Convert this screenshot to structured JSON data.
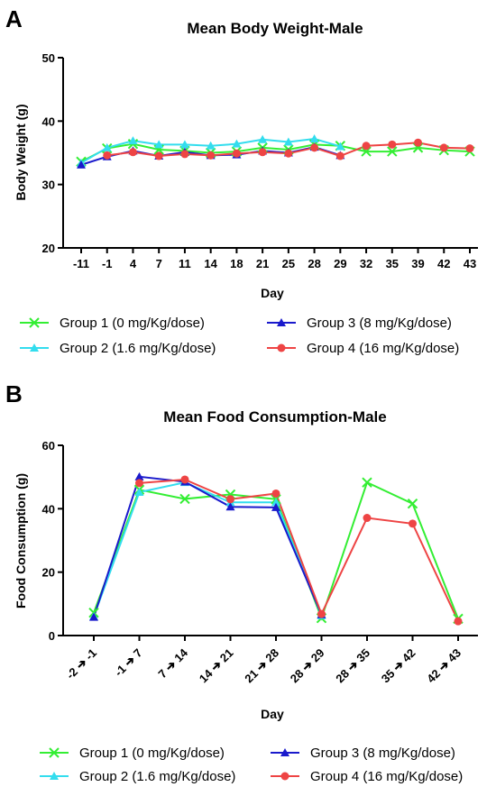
{
  "panels": {
    "a": {
      "letter": "A"
    },
    "b": {
      "letter": "B"
    }
  },
  "chart_data": [
    {
      "type": "line",
      "title": "Mean Body Weight-Male",
      "xlabel": "Day",
      "ylabel": "Body Weight (g)",
      "ylim": [
        20,
        50
      ],
      "yticks": [
        20,
        30,
        40,
        50
      ],
      "categories": [
        "-11",
        "-1",
        "4",
        "7",
        "11",
        "14",
        "18",
        "21",
        "25",
        "28",
        "29",
        "32",
        "35",
        "39",
        "42",
        "43"
      ],
      "series": [
        {
          "name": "Group 1 (0 mg/Kg/dose)",
          "color": "#33ee33",
          "marker": "x",
          "values": [
            33.6,
            35.7,
            36.4,
            35.5,
            35.3,
            35.0,
            35.2,
            35.8,
            35.5,
            36.3,
            36.1,
            35.2,
            35.2,
            35.8,
            35.4,
            35.2
          ]
        },
        {
          "name": "Group 2 (1.6 mg/Kg/dose)",
          "color": "#33ddee",
          "marker": "triangle",
          "values": [
            33.4,
            35.8,
            36.9,
            36.3,
            36.3,
            36.1,
            36.4,
            37.1,
            36.7,
            37.2,
            36.0,
            null,
            null,
            null,
            null,
            null
          ]
        },
        {
          "name": "Group 3 (8 mg/Kg/dose)",
          "color": "#1a1acc",
          "marker": "triangle",
          "values": [
            33.1,
            34.4,
            35.3,
            34.5,
            35.1,
            34.6,
            34.7,
            35.3,
            35.0,
            35.9,
            34.6,
            null,
            null,
            null,
            null,
            null
          ]
        },
        {
          "name": "Group 4 (16 mg/Kg/dose)",
          "color": "#ee4444",
          "marker": "circle",
          "values": [
            null,
            34.6,
            35.1,
            34.5,
            34.8,
            34.6,
            34.9,
            35.1,
            34.9,
            35.8,
            34.5,
            36.1,
            36.3,
            36.6,
            35.8,
            35.7
          ]
        }
      ],
      "legend": "bottom"
    },
    {
      "type": "line",
      "title": "Mean Food Consumption-Male",
      "xlabel": "Day",
      "ylabel": "Food Consumption (g)",
      "ylim": [
        0,
        60
      ],
      "yticks": [
        0,
        20,
        40,
        60
      ],
      "categories": [
        "-2 ➔ -1",
        "-1 ➔ 7",
        "7 ➔ 14",
        "14 ➔ 21",
        "21 ➔ 28",
        "28 ➔ 29",
        "28 ➔ 35",
        "35 ➔ 42",
        "42 ➔ 43"
      ],
      "series": [
        {
          "name": "Group 1 (0 mg/Kg/dose)",
          "color": "#33ee33",
          "marker": "x",
          "values": [
            7.2,
            46.0,
            43.1,
            44.5,
            43.0,
            5.5,
            48.3,
            41.6,
            5.3
          ]
        },
        {
          "name": "Group 2 (1.6 mg/Kg/dose)",
          "color": "#33ddee",
          "marker": "triangle",
          "values": [
            6.0,
            45.2,
            48.3,
            42.0,
            42.0,
            6.3,
            null,
            null,
            null
          ]
        },
        {
          "name": "Group 3 (8 mg/Kg/dose)",
          "color": "#1a1acc",
          "marker": "triangle",
          "values": [
            5.8,
            50.1,
            48.5,
            40.6,
            40.4,
            6.6,
            null,
            null,
            null
          ]
        },
        {
          "name": "Group 4 (16 mg/Kg/dose)",
          "color": "#ee4444",
          "marker": "circle",
          "values": [
            null,
            48.1,
            49.2,
            43.0,
            44.8,
            6.8,
            37.1,
            35.3,
            4.5
          ]
        }
      ],
      "legend": "bottom"
    }
  ]
}
